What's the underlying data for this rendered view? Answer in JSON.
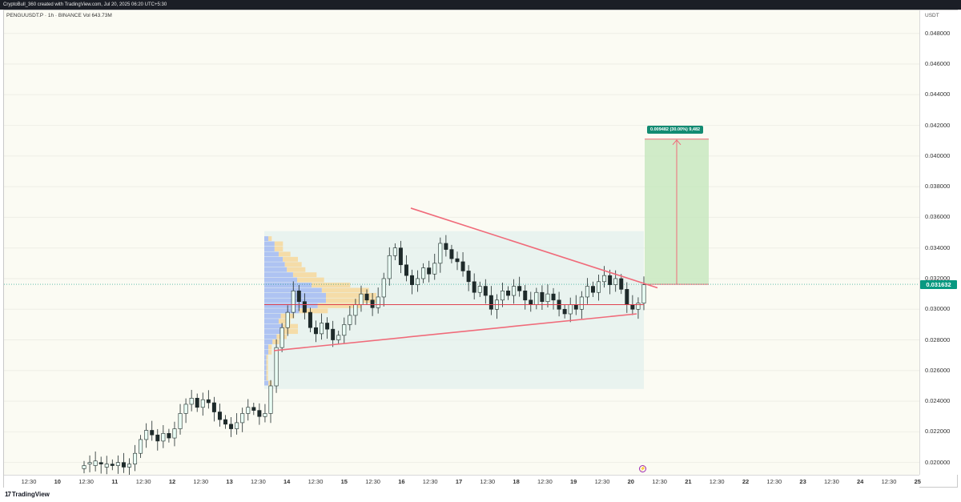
{
  "header": {
    "caption": "CryptoBull_360 created with TradingView.com, Jul 20, 2025 06:20 UTC+5:30"
  },
  "chart_data": {
    "type": "candlestick",
    "symbol_line": "PENGUUSDT.P · 1h · BINANCE  Vol 643.73M",
    "currency": "USDT",
    "ylim": [
      0.0192,
      0.0495
    ],
    "y_ticks": [
      "0.048000",
      "0.046000",
      "0.044000",
      "0.042000",
      "0.040000",
      "0.038000",
      "0.036000",
      "0.034000",
      "0.032000",
      "0.030000",
      "0.028000",
      "0.026000",
      "0.024000",
      "0.022000",
      "0.020000"
    ],
    "last_price": "0.031632",
    "x_ticks": [
      {
        "label": "12:30",
        "day": false
      },
      {
        "label": "10",
        "day": true
      },
      {
        "label": "12:30",
        "day": false
      },
      {
        "label": "11",
        "day": true
      },
      {
        "label": "12:30",
        "day": false
      },
      {
        "label": "12",
        "day": true
      },
      {
        "label": "12:30",
        "day": false
      },
      {
        "label": "13",
        "day": true
      },
      {
        "label": "12:30",
        "day": false
      },
      {
        "label": "14",
        "day": true
      },
      {
        "label": "12:30",
        "day": false
      },
      {
        "label": "15",
        "day": true
      },
      {
        "label": "12:30",
        "day": false
      },
      {
        "label": "16",
        "day": true
      },
      {
        "label": "12:30",
        "day": false
      },
      {
        "label": "17",
        "day": true
      },
      {
        "label": "12:30",
        "day": false
      },
      {
        "label": "18",
        "day": true
      },
      {
        "label": "12:30",
        "day": false
      },
      {
        "label": "19",
        "day": true
      },
      {
        "label": "12:30",
        "day": false
      },
      {
        "label": "20",
        "day": true
      },
      {
        "label": "12:30",
        "day": false
      },
      {
        "label": "21",
        "day": true
      },
      {
        "label": "12:30",
        "day": false
      },
      {
        "label": "22",
        "day": true
      },
      {
        "label": "12:30",
        "day": false
      },
      {
        "label": "23",
        "day": true
      },
      {
        "label": "12:30",
        "day": false
      },
      {
        "label": "24",
        "day": true
      },
      {
        "label": "12:30",
        "day": false
      },
      {
        "label": "25",
        "day": true
      }
    ],
    "price_path": [
      [
        0.0196,
        0.0198
      ],
      [
        0.0199,
        0.02
      ],
      [
        0.0198,
        0.0201
      ],
      [
        0.02,
        0.0199
      ],
      [
        0.0197,
        0.0199
      ],
      [
        0.0199,
        0.0198
      ],
      [
        0.0198,
        0.02
      ],
      [
        0.02,
        0.0197
      ],
      [
        0.0197,
        0.0199
      ],
      [
        0.0199,
        0.0206
      ],
      [
        0.0206,
        0.0215
      ],
      [
        0.0215,
        0.0221
      ],
      [
        0.0221,
        0.0218
      ],
      [
        0.0218,
        0.0214
      ],
      [
        0.0214,
        0.0219
      ],
      [
        0.0219,
        0.0216
      ],
      [
        0.0216,
        0.0222
      ],
      [
        0.0222,
        0.0232
      ],
      [
        0.0232,
        0.0238
      ],
      [
        0.0238,
        0.0242
      ],
      [
        0.0242,
        0.0236
      ],
      [
        0.0236,
        0.0241
      ],
      [
        0.0241,
        0.0239
      ],
      [
        0.0239,
        0.0233
      ],
      [
        0.0233,
        0.0228
      ],
      [
        0.0228,
        0.0225
      ],
      [
        0.0225,
        0.0222
      ],
      [
        0.0222,
        0.0226
      ],
      [
        0.0226,
        0.0232
      ],
      [
        0.0232,
        0.0236
      ],
      [
        0.0236,
        0.0234
      ],
      [
        0.0234,
        0.023
      ],
      [
        0.023,
        0.0232
      ],
      [
        0.0232,
        0.025
      ],
      [
        0.025,
        0.0275
      ],
      [
        0.0275,
        0.0288
      ],
      [
        0.0288,
        0.0298
      ],
      [
        0.0298,
        0.0312
      ],
      [
        0.0312,
        0.0305
      ],
      [
        0.0305,
        0.0298
      ],
      [
        0.0298,
        0.0288
      ],
      [
        0.0288,
        0.0284
      ],
      [
        0.0284,
        0.0291
      ],
      [
        0.0291,
        0.0287
      ],
      [
        0.0287,
        0.028
      ],
      [
        0.028,
        0.0283
      ],
      [
        0.0283,
        0.029
      ],
      [
        0.029,
        0.0296
      ],
      [
        0.0296,
        0.0303
      ],
      [
        0.0303,
        0.031
      ],
      [
        0.031,
        0.0306
      ],
      [
        0.0306,
        0.0301
      ],
      [
        0.0301,
        0.0308
      ],
      [
        0.0308,
        0.032
      ],
      [
        0.032,
        0.0335
      ],
      [
        0.0335,
        0.034
      ],
      [
        0.034,
        0.0329
      ],
      [
        0.0329,
        0.0322
      ],
      [
        0.0322,
        0.0316
      ],
      [
        0.0316,
        0.032
      ],
      [
        0.032,
        0.0327
      ],
      [
        0.0327,
        0.0323
      ],
      [
        0.0323,
        0.033
      ],
      [
        0.033,
        0.0343
      ],
      [
        0.0343,
        0.0339
      ],
      [
        0.0339,
        0.0333
      ],
      [
        0.0333,
        0.0331
      ],
      [
        0.0331,
        0.0325
      ],
      [
        0.0325,
        0.0318
      ],
      [
        0.0318,
        0.0311
      ],
      [
        0.0311,
        0.0315
      ],
      [
        0.0315,
        0.0309
      ],
      [
        0.0309,
        0.03
      ],
      [
        0.03,
        0.0306
      ],
      [
        0.0306,
        0.0312
      ],
      [
        0.0312,
        0.0309
      ],
      [
        0.0309,
        0.0315
      ],
      [
        0.0315,
        0.0312
      ],
      [
        0.0312,
        0.0306
      ],
      [
        0.0306,
        0.0303
      ],
      [
        0.0303,
        0.0311
      ],
      [
        0.0311,
        0.0305
      ],
      [
        0.0305,
        0.031
      ],
      [
        0.031,
        0.0306
      ],
      [
        0.0306,
        0.03
      ],
      [
        0.03,
        0.0297
      ],
      [
        0.0297,
        0.0303
      ],
      [
        0.0303,
        0.03
      ],
      [
        0.03,
        0.0308
      ],
      [
        0.0308,
        0.0315
      ],
      [
        0.0315,
        0.0311
      ],
      [
        0.0311,
        0.0318
      ],
      [
        0.0318,
        0.0322
      ],
      [
        0.0322,
        0.0316
      ],
      [
        0.0316,
        0.032
      ],
      [
        0.032,
        0.0313
      ],
      [
        0.0313,
        0.0303
      ],
      [
        0.0303,
        0.03
      ],
      [
        0.03,
        0.0304
      ],
      [
        0.0304,
        0.0316
      ]
    ],
    "annotations": {
      "target_label": "0.009482 (30.00%) 9,482",
      "target_price": 0.0411,
      "entry_price": 0.03163,
      "poc_price": 0.0303,
      "value_area": [
        0.0248,
        0.0351
      ],
      "upper_trendline": [
        0.0366,
        0.0314
      ],
      "lower_trendline": [
        0.0273,
        0.0297
      ]
    }
  },
  "colors": {
    "up": "#089981",
    "down": "#f23645",
    "candle": "#1e2a2a",
    "trendline": "#f06b7a",
    "poc": "#e0424f",
    "target_zone": "#c8e8c0",
    "profile_blue": "#9fb7f2",
    "profile_orange": "#f7d79b"
  },
  "footer": {
    "logo_text": "TradingView"
  }
}
